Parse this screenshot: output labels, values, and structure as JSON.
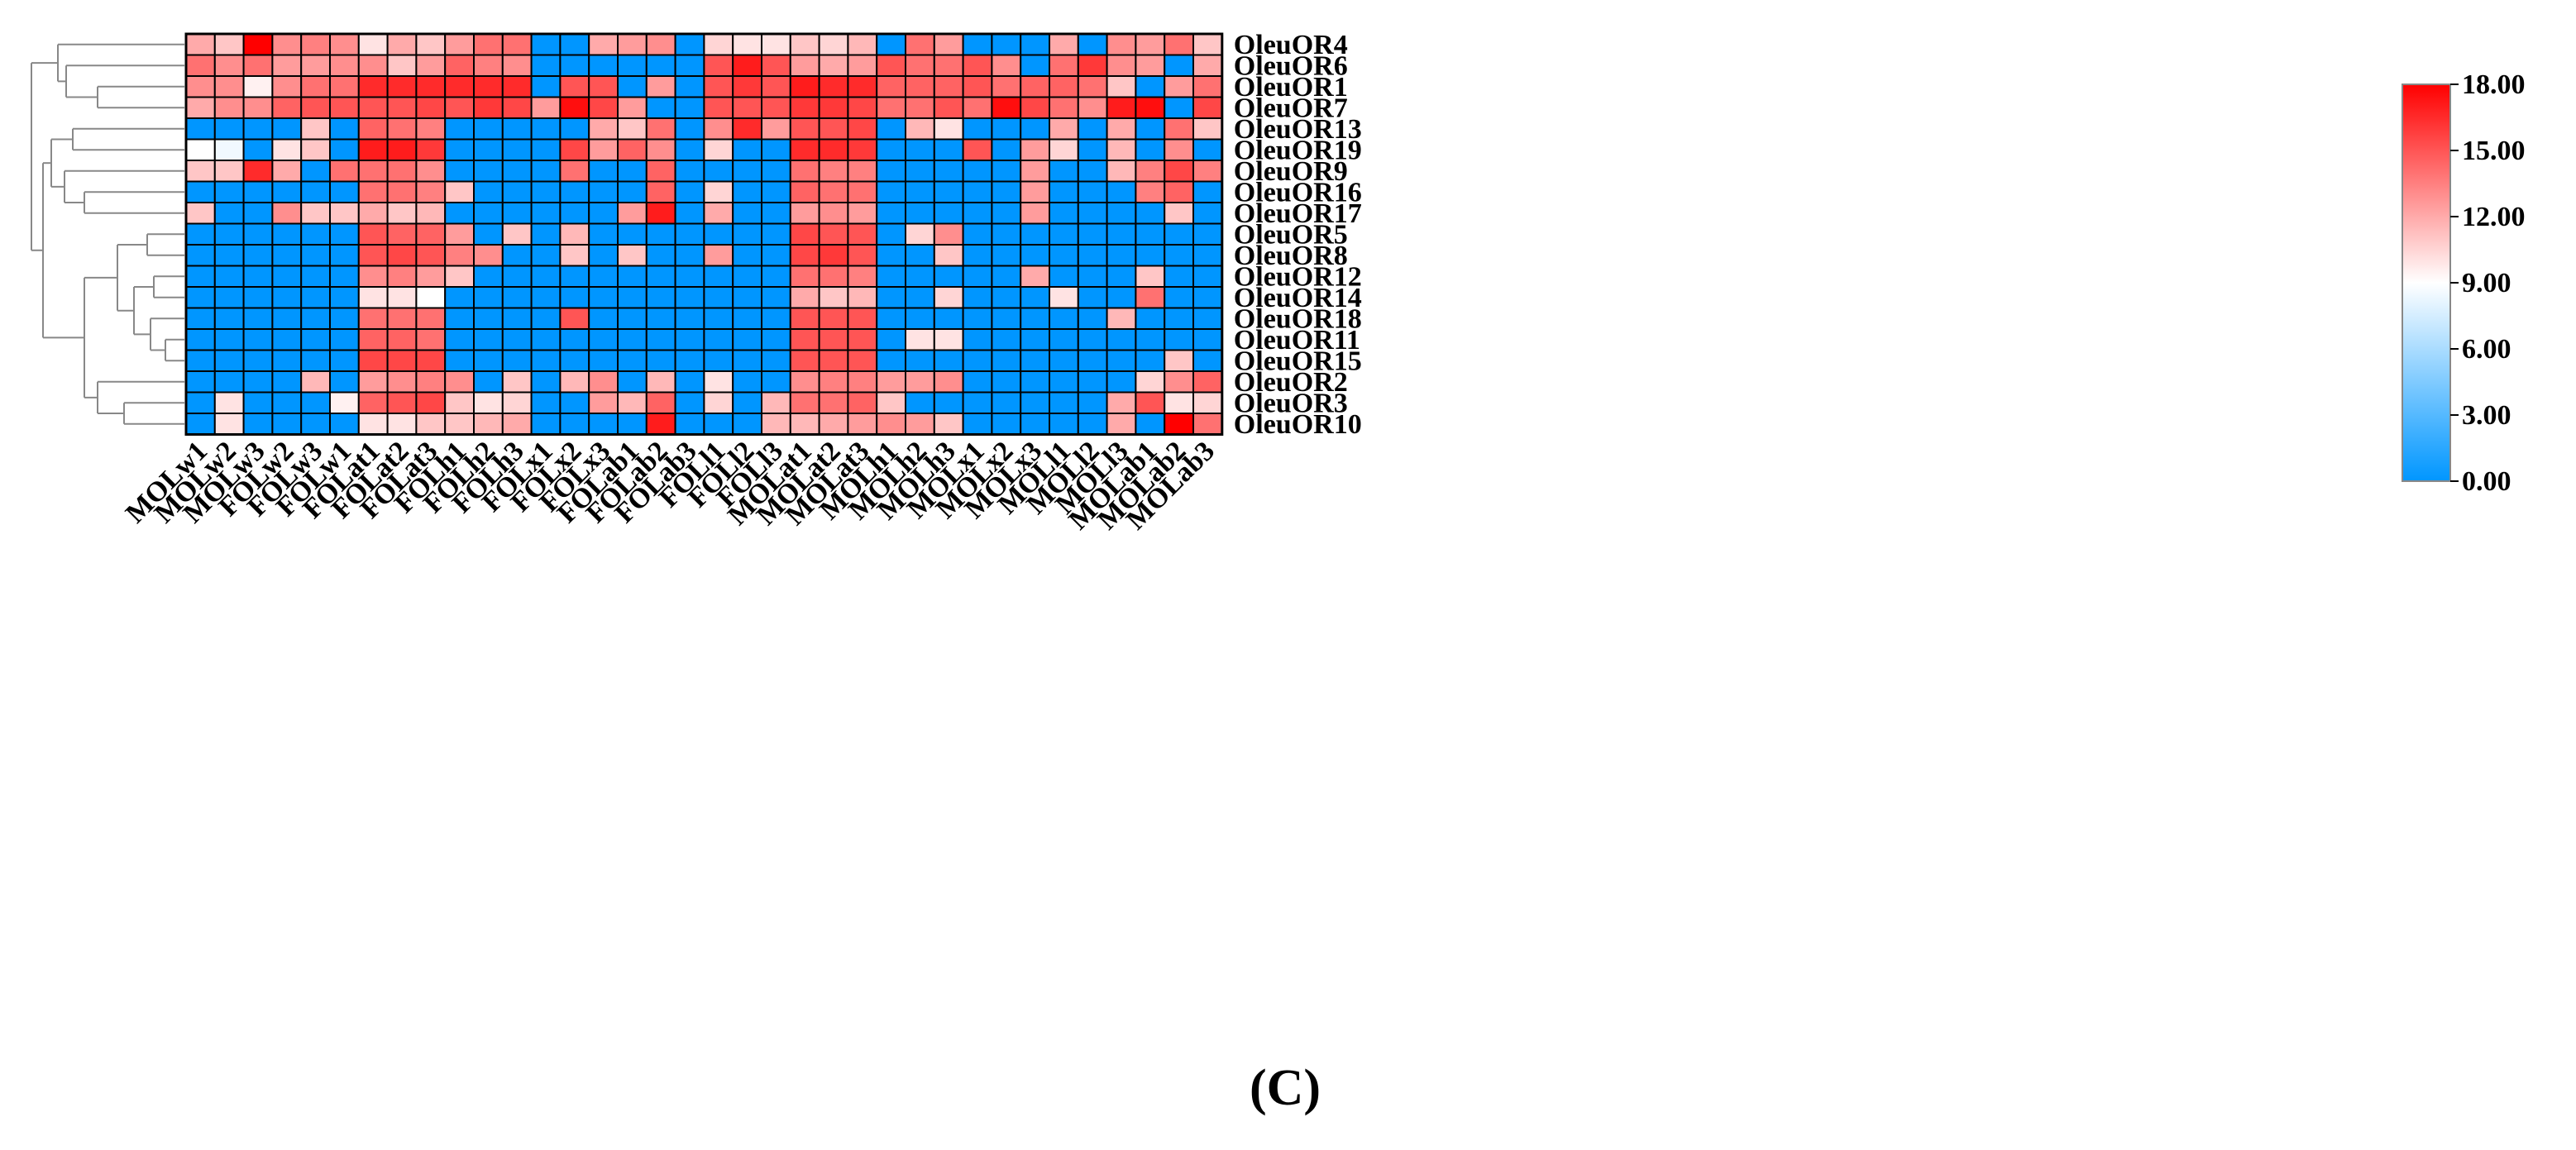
{
  "chart_data": {
    "type": "heatmap",
    "panel_label": "(C)",
    "rows": [
      "OleuOR4",
      "OleuOR6",
      "OleuOR1",
      "OleuOR7",
      "OleuOR13",
      "OleuOR19",
      "OleuOR9",
      "OleuOR16",
      "OleuOR17",
      "OleuOR5",
      "OleuOR8",
      "OleuOR12",
      "OleuOR14",
      "OleuOR18",
      "OleuOR11",
      "OleuOR15",
      "OleuOR2",
      "OleuOR3",
      "OleuOR10"
    ],
    "columns": [
      "MOLw1",
      "MOLw2",
      "MOLw3",
      "FOLw2",
      "FOLw3",
      "FOLw1",
      "FOLat1",
      "FOLat2",
      "FOLat3",
      "FOLh1",
      "FOLh2",
      "FOLh3",
      "FOLx1",
      "FOLx2",
      "FOLx3",
      "FOLab1",
      "FOLab2",
      "FOLab3",
      "FOLl1",
      "FOLl2",
      "FOLl3",
      "MOLat1",
      "MOLat2",
      "MOLat3",
      "MOLh1",
      "MOLh2",
      "MOLh3",
      "MOLx1",
      "MOLx2",
      "MOLx3",
      "MOLl1",
      "MOLl2",
      "MOLl3",
      "MOLab1",
      "MOLab2",
      "MOLab3"
    ],
    "values": [
      [
        12,
        11,
        18,
        13,
        13.5,
        13,
        10,
        12,
        11,
        12.5,
        14,
        14,
        0,
        0,
        12,
        12.5,
        13,
        0,
        10.5,
        10,
        10,
        11,
        10.5,
        11.5,
        0,
        14,
        12.5,
        0,
        0,
        0,
        12,
        0,
        13,
        12.5,
        14,
        11
      ],
      [
        14,
        13,
        14,
        12.5,
        12.5,
        13,
        13,
        11,
        12.5,
        14.5,
        13.5,
        13,
        0,
        0,
        0,
        0,
        0,
        0,
        15,
        17,
        15,
        12.5,
        12,
        12.5,
        15,
        14,
        14,
        15,
        13,
        0,
        14,
        16,
        13,
        12.5,
        0,
        12
      ],
      [
        13,
        13,
        9.5,
        13,
        14,
        14,
        16.5,
        16.5,
        16.5,
        16.5,
        16.5,
        16.5,
        0,
        15,
        15,
        0,
        12.5,
        0,
        15,
        16,
        15,
        17,
        16.5,
        16.5,
        14.5,
        14.5,
        14.5,
        15,
        14,
        14.5,
        14.5,
        14,
        11,
        0,
        12.5,
        14
      ],
      [
        12,
        13,
        13,
        14.5,
        15,
        15,
        15,
        15,
        15.5,
        15,
        16,
        15.5,
        12.5,
        17.5,
        15.5,
        12.5,
        0,
        0,
        15,
        15,
        15,
        16,
        16,
        15.5,
        14,
        14,
        15,
        14,
        17.5,
        15.5,
        14,
        13,
        17,
        17.5,
        0,
        15.5
      ],
      [
        0,
        0,
        0,
        0,
        11,
        0,
        14.5,
        14,
        13.5,
        0,
        0,
        0,
        0,
        0,
        12,
        11,
        14,
        0,
        13,
        16.5,
        12.5,
        15,
        15,
        15.5,
        0,
        11.5,
        10,
        0,
        0,
        0,
        12,
        0,
        12,
        0,
        14,
        11
      ],
      [
        9,
        8.5,
        0,
        10,
        11,
        0,
        17,
        17,
        16,
        0,
        0,
        0,
        0,
        15.5,
        12.5,
        14.5,
        13,
        0,
        10.5,
        0,
        0,
        16.5,
        16.5,
        16,
        0,
        0,
        0,
        15,
        0,
        12.5,
        10.5,
        0,
        11.5,
        0,
        13,
        0
      ],
      [
        11,
        11,
        16.5,
        12,
        0,
        14,
        14,
        14,
        13,
        0,
        0,
        0,
        0,
        14,
        0,
        0,
        14.5,
        0,
        0,
        0,
        0,
        14,
        13.5,
        13.5,
        0,
        0,
        0,
        0,
        0,
        12.5,
        0,
        0,
        11.5,
        13.5,
        15.5,
        13.5
      ],
      [
        0,
        0,
        0,
        0,
        0,
        0,
        14,
        14,
        13.5,
        11,
        0,
        0,
        0,
        0,
        0,
        0,
        14.5,
        0,
        10.5,
        0,
        0,
        14.5,
        14,
        14,
        0,
        0,
        0,
        0,
        0,
        12.5,
        0,
        0,
        0,
        13.5,
        14.5,
        0
      ],
      [
        11,
        0,
        0,
        13,
        11,
        11,
        12,
        11,
        11.5,
        0,
        0,
        0,
        0,
        0,
        0,
        12.5,
        17,
        0,
        12,
        0,
        0,
        12.5,
        13,
        12.5,
        0,
        0,
        0,
        0,
        0,
        12.5,
        0,
        0,
        0,
        0,
        11,
        0
      ],
      [
        0,
        0,
        0,
        0,
        0,
        0,
        15,
        14.5,
        14.5,
        12.5,
        0,
        11,
        0,
        11.5,
        0,
        0,
        0,
        0,
        0,
        0,
        0,
        15.5,
        15,
        15,
        0,
        10.5,
        13,
        0,
        0,
        0,
        0,
        0,
        0,
        0,
        0,
        0
      ],
      [
        0,
        0,
        0,
        0,
        0,
        0,
        15,
        15.5,
        15,
        13.5,
        13,
        0,
        0,
        11,
        0,
        11,
        0,
        0,
        12.5,
        0,
        0,
        15.5,
        16,
        15,
        0,
        0,
        11,
        0,
        0,
        0,
        0,
        0,
        0,
        0,
        0,
        0
      ],
      [
        0,
        0,
        0,
        0,
        0,
        0,
        13,
        13.5,
        12.5,
        11,
        0,
        0,
        0,
        0,
        0,
        0,
        0,
        0,
        0,
        0,
        0,
        14,
        14,
        13.5,
        0,
        0,
        0,
        0,
        0,
        12,
        0,
        0,
        0,
        11,
        0,
        0
      ],
      [
        0,
        0,
        0,
        0,
        0,
        0,
        10,
        10,
        9,
        0,
        0,
        0,
        0,
        0,
        0,
        0,
        0,
        0,
        0,
        0,
        0,
        12,
        11,
        11.5,
        0,
        0,
        10.5,
        0,
        0,
        0,
        10,
        0,
        0,
        14,
        0,
        0
      ],
      [
        0,
        0,
        0,
        0,
        0,
        0,
        14,
        14,
        14,
        0,
        0,
        0,
        0,
        15,
        0,
        0,
        0,
        0,
        0,
        0,
        0,
        15,
        15,
        15,
        0,
        0,
        0,
        0,
        0,
        0,
        0,
        0,
        11.5,
        0,
        0,
        0
      ],
      [
        0,
        0,
        0,
        0,
        0,
        0,
        14.5,
        14.5,
        14,
        0,
        0,
        0,
        0,
        0,
        0,
        0,
        0,
        0,
        0,
        0,
        0,
        15,
        15,
        15,
        0,
        10,
        10,
        0,
        0,
        0,
        0,
        0,
        0,
        0,
        0,
        0
      ],
      [
        0,
        0,
        0,
        0,
        0,
        0,
        15.5,
        15.5,
        15.5,
        0,
        0,
        0,
        0,
        0,
        0,
        0,
        0,
        0,
        0,
        0,
        0,
        15,
        15,
        15,
        0,
        0,
        0,
        0,
        0,
        0,
        0,
        0,
        0,
        0,
        11,
        0
      ],
      [
        0,
        0,
        0,
        0,
        11.5,
        0,
        12.5,
        13,
        13.5,
        13,
        0,
        11,
        0,
        11.5,
        13,
        0,
        11.5,
        0,
        10,
        0,
        0,
        13,
        13.5,
        13.5,
        12.5,
        12.5,
        13,
        0,
        0,
        0,
        0,
        0,
        0,
        10.5,
        13,
        14.5
      ],
      [
        0,
        10,
        0,
        0,
        0,
        9.5,
        14.5,
        15,
        15.5,
        11,
        10,
        10.5,
        0,
        0,
        12.5,
        11.5,
        14.5,
        0,
        10.5,
        0,
        11.5,
        14,
        14,
        14.5,
        11,
        0,
        0,
        0,
        0,
        0,
        0,
        0,
        12,
        15,
        10,
        10.5
      ],
      [
        0,
        10,
        0,
        0,
        0,
        0,
        10,
        10,
        11,
        11,
        11.5,
        12,
        0,
        0,
        0,
        0,
        17,
        0,
        0,
        0,
        11.5,
        11.5,
        12,
        12.5,
        13,
        12.5,
        11,
        0,
        0,
        0,
        0,
        0,
        12,
        0,
        18,
        14
      ]
    ],
    "colorbar": {
      "ticks": [
        "18.00",
        "15.00",
        "12.00",
        "9.00",
        "6.00",
        "3.00",
        "0.00"
      ],
      "min": 0,
      "mid": 9,
      "max": 18,
      "colors": {
        "low": "#0096FF",
        "mid": "#FFFFFF",
        "high": "#FF0000"
      }
    }
  }
}
